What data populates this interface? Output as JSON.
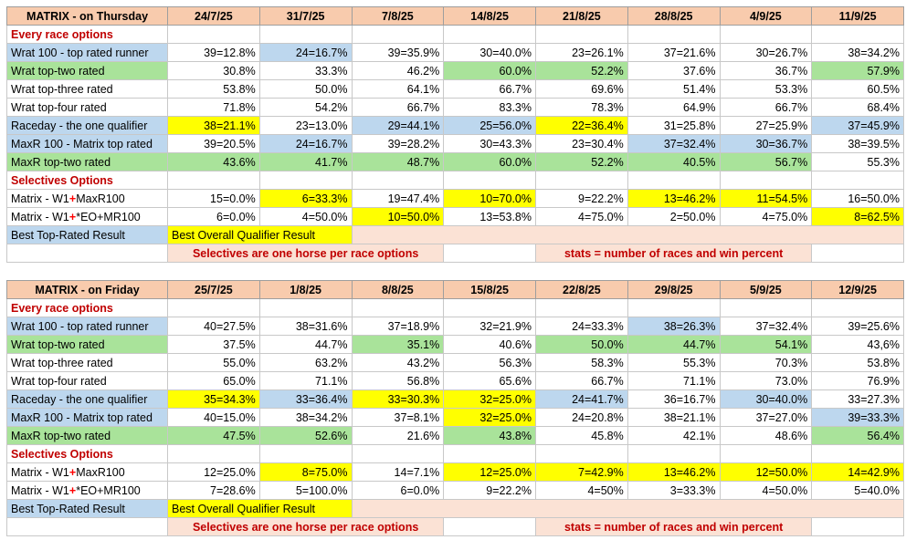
{
  "plus": "+",
  "thursday": {
    "title": "MATRIX - on Thursday",
    "dates": [
      "24/7/25",
      "31/7/25",
      "7/8/25",
      "14/8/25",
      "21/8/25",
      "28/8/25",
      "4/9/25",
      "11/9/25"
    ],
    "every_label": "Every race options",
    "rows": [
      {
        "label": "Wrat 100 - top rated runner",
        "lc": "b",
        "vals": [
          "39=12.8%",
          "24=16.7%",
          "39=35.9%",
          "30=40.0%",
          "23=26.1%",
          "37=21.6%",
          "30=26.7%",
          "38=34.2%"
        ],
        "cc": [
          "",
          "b",
          "",
          "",
          "",
          "",
          "",
          ""
        ]
      },
      {
        "label": "Wrat top-two rated",
        "lc": "g",
        "vals": [
          "30.8%",
          "33.3%",
          "46.2%",
          "60.0%",
          "52.2%",
          "37.6%",
          "36.7%",
          "57.9%"
        ],
        "cc": [
          "",
          "",
          "",
          "g",
          "g",
          "",
          "",
          "g"
        ]
      },
      {
        "label": "Wrat top-three rated",
        "lc": "",
        "vals": [
          "53.8%",
          "50.0%",
          "64.1%",
          "66.7%",
          "69.6%",
          "51.4%",
          "53.3%",
          "60.5%"
        ],
        "cc": [
          "",
          "",
          "",
          "",
          "",
          "",
          "",
          ""
        ]
      },
      {
        "label": "Wrat top-four rated",
        "lc": "",
        "vals": [
          "71.8%",
          "54.2%",
          "66.7%",
          "83.3%",
          "78.3%",
          "64.9%",
          "66.7%",
          "68.4%"
        ],
        "cc": [
          "",
          "",
          "",
          "",
          "",
          "",
          "",
          ""
        ]
      },
      {
        "label": "Raceday - the one qualifier",
        "lc": "b",
        "vals": [
          "38=21.1%",
          "23=13.0%",
          "29=44.1%",
          "25=56.0%",
          "22=36.4%",
          "31=25.8%",
          "27=25.9%",
          "37=45.9%"
        ],
        "cc": [
          "y",
          "",
          "b",
          "b",
          "y",
          "",
          "",
          "b"
        ]
      },
      {
        "label": "MaxR 100 - Matrix top rated",
        "lc": "b",
        "vals": [
          "39=20.5%",
          "24=16.7%",
          "39=28.2%",
          "30=43.3%",
          "23=30.4%",
          "37=32.4%",
          "30=36.7%",
          "38=39.5%"
        ],
        "cc": [
          "",
          "b",
          "",
          "",
          "",
          "b",
          "b",
          ""
        ]
      },
      {
        "label": "MaxR top-two rated",
        "lc": "g",
        "vals": [
          "43.6%",
          "41.7%",
          "48.7%",
          "60.0%",
          "52.2%",
          "40.5%",
          "56.7%",
          "55.3%"
        ],
        "cc": [
          "g",
          "g",
          "g",
          "g",
          "g",
          "g",
          "g",
          ""
        ]
      }
    ],
    "selectives_label": "Selectives Options",
    "sel_rows": [
      {
        "pre": "Matrix - W1",
        "post": "MaxR100",
        "vals": [
          "15=0.0%",
          "6=33.3%",
          "19=47.4%",
          "10=70.0%",
          "9=22.2%",
          "13=46.2%",
          "11=54.5%",
          "16=50.0%"
        ],
        "cc": [
          "",
          "y",
          "",
          "y",
          "",
          "y",
          "y",
          ""
        ]
      },
      {
        "pre": "Matrix - W1",
        "post": "*EO+MR100",
        "vals": [
          "6=0.0%",
          "4=50.0%",
          "10=50.0%",
          "13=53.8%",
          "4=75.0%",
          "2=50.0%",
          "4=75.0%",
          "8=62.5%"
        ],
        "cc": [
          "",
          "",
          "y",
          "",
          "",
          "",
          "",
          "y"
        ]
      }
    ],
    "legend_top": "Best Top-Rated Result",
    "legend_overall": "Best Overall Qualifier Result",
    "note_left": "Selectives are one horse per race options",
    "note_right": "stats = number of races and win percent"
  },
  "friday": {
    "title": "MATRIX - on Friday",
    "dates": [
      "25/7/25",
      "1/8/25",
      "8/8/25",
      "15/8/25",
      "22/8/25",
      "29/8/25",
      "5/9/25",
      "12/9/25"
    ],
    "every_label": "Every race options",
    "rows": [
      {
        "label": "Wrat 100 - top rated runner",
        "lc": "b",
        "vals": [
          "40=27.5%",
          "38=31.6%",
          "37=18.9%",
          "32=21.9%",
          "24=33.3%",
          "38=26.3%",
          "37=32.4%",
          "39=25.6%"
        ],
        "cc": [
          "",
          "",
          "",
          "",
          "",
          "b",
          "",
          ""
        ]
      },
      {
        "label": "Wrat top-two rated",
        "lc": "g",
        "vals": [
          "37.5%",
          "44.7%",
          "35.1%",
          "40.6%",
          "50.0%",
          "44.7%",
          "54.1%",
          "43,6%"
        ],
        "cc": [
          "",
          "",
          "g",
          "",
          "g",
          "g",
          "g",
          ""
        ]
      },
      {
        "label": "Wrat top-three rated",
        "lc": "",
        "vals": [
          "55.0%",
          "63.2%",
          "43.2%",
          "56.3%",
          "58.3%",
          "55.3%",
          "70.3%",
          "53.8%"
        ],
        "cc": [
          "",
          "",
          "",
          "",
          "",
          "",
          "",
          ""
        ]
      },
      {
        "label": "Wrat top-four rated",
        "lc": "",
        "vals": [
          "65.0%",
          "71.1%",
          "56.8%",
          "65.6%",
          "66.7%",
          "71.1%",
          "73.0%",
          "76.9%"
        ],
        "cc": [
          "",
          "",
          "",
          "",
          "",
          "",
          "",
          ""
        ]
      },
      {
        "label": "Raceday - the one qualifier",
        "lc": "b",
        "vals": [
          "35=34.3%",
          "33=36.4%",
          "33=30.3%",
          "32=25.0%",
          "24=41.7%",
          "36=16.7%",
          "30=40.0%",
          "33=27.3%"
        ],
        "cc": [
          "y",
          "b",
          "y",
          "y",
          "b",
          "",
          "b",
          ""
        ]
      },
      {
        "label": "MaxR 100 - Matrix top rated",
        "lc": "b",
        "vals": [
          "40=15.0%",
          "38=34.2%",
          "37=8.1%",
          "32=25.0%",
          "24=20.8%",
          "38=21.1%",
          "37=27.0%",
          "39=33.3%"
        ],
        "cc": [
          "",
          "",
          "",
          "y",
          "",
          "",
          "",
          "b"
        ]
      },
      {
        "label": "MaxR top-two rated",
        "lc": "g",
        "vals": [
          "47.5%",
          "52.6%",
          "21.6%",
          "43.8%",
          "45.8%",
          "42.1%",
          "48.6%",
          "56.4%"
        ],
        "cc": [
          "g",
          "g",
          "",
          "g",
          "",
          "",
          "",
          "g"
        ]
      }
    ],
    "selectives_label": "Selectives Options",
    "sel_rows": [
      {
        "pre": "Matrix - W1",
        "post": "MaxR100",
        "vals": [
          "12=25.0%",
          "8=75.0%",
          "14=7.1%",
          "12=25.0%",
          "7=42.9%",
          "13=46.2%",
          "12=50.0%",
          "14=42.9%"
        ],
        "cc": [
          "",
          "y",
          "",
          "y",
          "y",
          "y",
          "y",
          "y"
        ]
      },
      {
        "pre": "Matrix - W1",
        "post": "*EO+MR100",
        "vals": [
          "7=28.6%",
          "5=100.0%",
          "6=0.0%",
          "9=22.2%",
          "4=50%",
          "3=33.3%",
          "4=50.0%",
          "5=40.0%"
        ],
        "cc": [
          "",
          "",
          "",
          "",
          "",
          "",
          "",
          ""
        ]
      }
    ],
    "legend_top": "Best Top-Rated Result",
    "legend_overall": "Best Overall Qualifier Result",
    "note_left": "Selectives are one horse per race options",
    "note_right": "stats = number of races and win percent"
  }
}
